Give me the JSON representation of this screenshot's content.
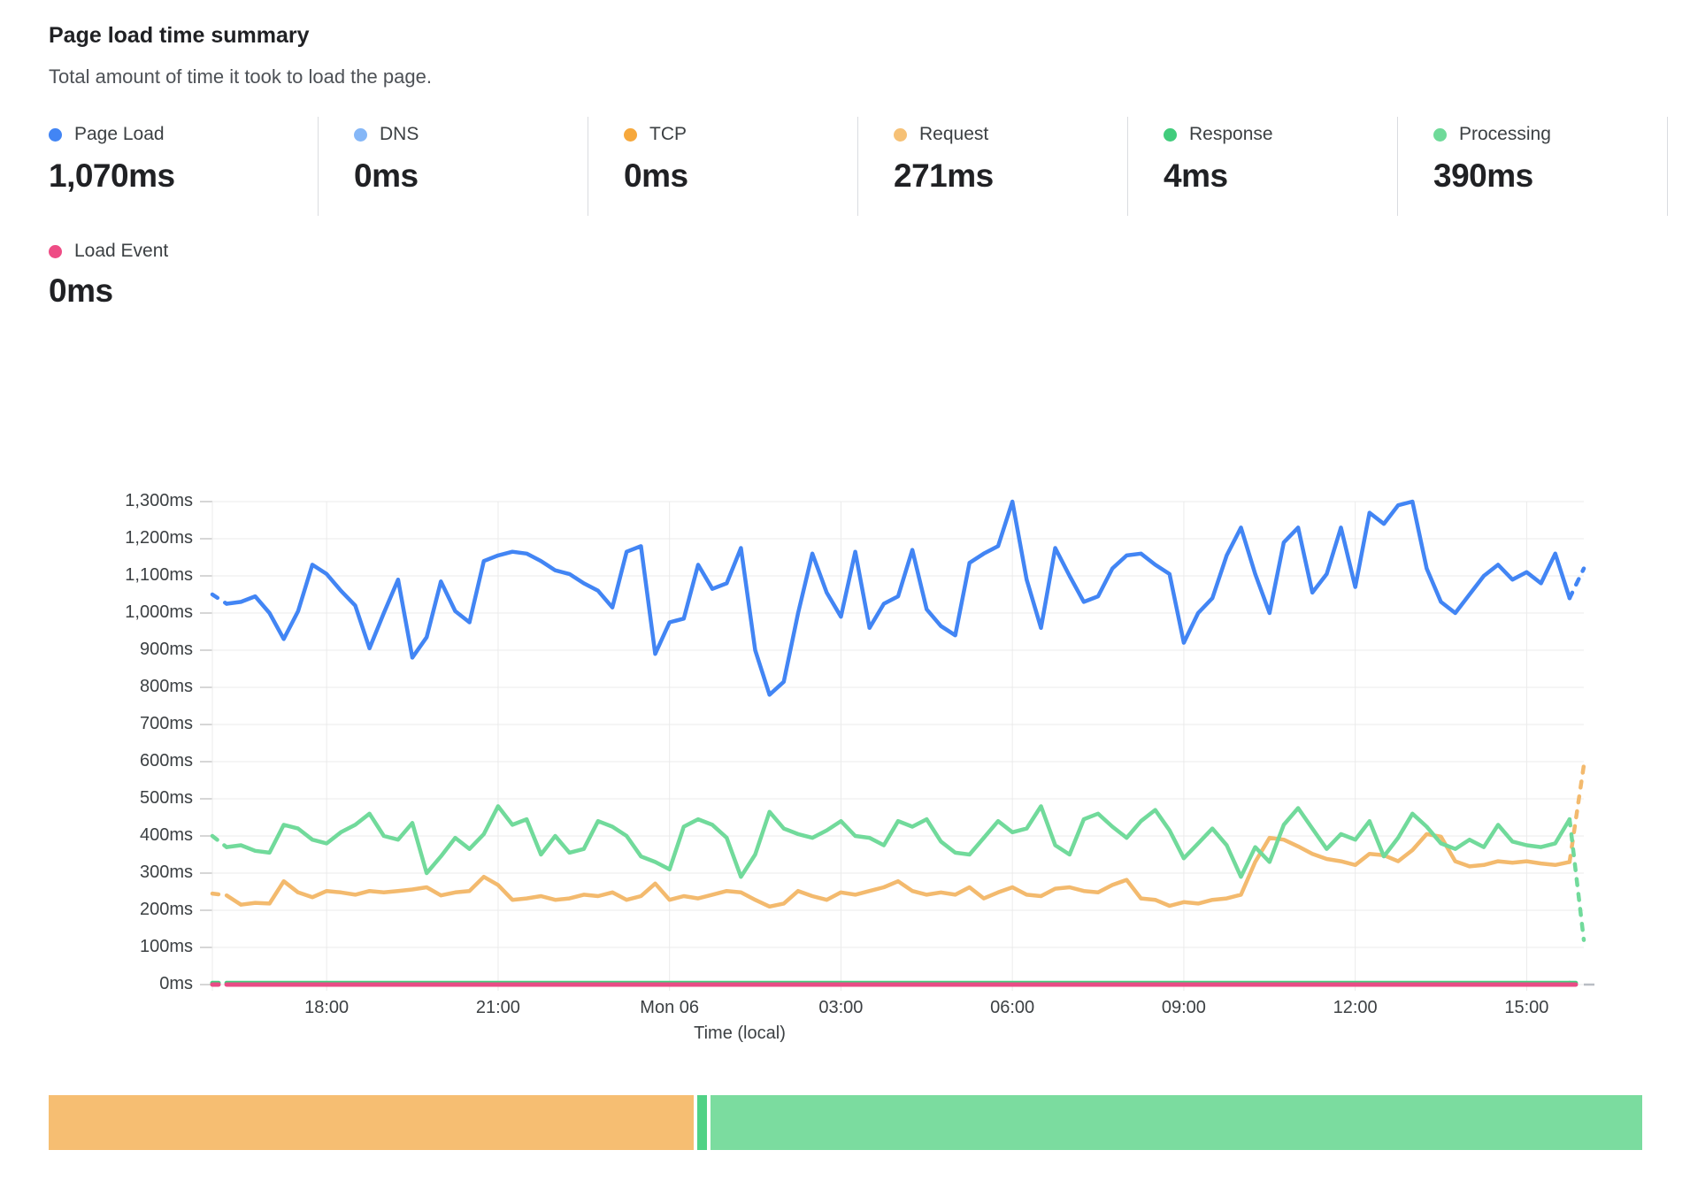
{
  "header": {
    "title": "Page load time summary",
    "subtitle": "Total amount of time it took to load the page."
  },
  "metrics": [
    {
      "label": "Page Load",
      "value": "1,070ms",
      "color": "#4285F4"
    },
    {
      "label": "DNS",
      "value": "0ms",
      "color": "#85B7F7"
    },
    {
      "label": "TCP",
      "value": "0ms",
      "color": "#F6A83C"
    },
    {
      "label": "Request",
      "value": "271ms",
      "color": "#F6C176"
    },
    {
      "label": "Response",
      "value": "4ms",
      "color": "#41CC7C"
    },
    {
      "label": "Processing",
      "value": "390ms",
      "color": "#6FDA99"
    }
  ],
  "load_event_metric": {
    "label": "Load Event",
    "value": "0ms",
    "color": "#EE4C85"
  },
  "chart_data": {
    "type": "line",
    "title": "Page load time summary",
    "xlabel": "Time (local)",
    "ylabel": "",
    "ylim": [
      0,
      1300
    ],
    "grid": true,
    "points": 97,
    "interval_minutes": 15,
    "y_ticks": [
      "0ms",
      "100ms",
      "200ms",
      "300ms",
      "400ms",
      "500ms",
      "600ms",
      "700ms",
      "800ms",
      "900ms",
      "1,000ms",
      "1,100ms",
      "1,200ms",
      "1,300ms"
    ],
    "x_ticks": [
      {
        "index": 8,
        "label": "18:00"
      },
      {
        "index": 20,
        "label": "21:00"
      },
      {
        "index": 32,
        "label": "Mon 06"
      },
      {
        "index": 44,
        "label": "03:00"
      },
      {
        "index": 56,
        "label": "06:00"
      },
      {
        "index": 68,
        "label": "09:00"
      },
      {
        "index": 80,
        "label": "12:00"
      },
      {
        "index": 92,
        "label": "15:00"
      }
    ],
    "series": [
      {
        "name": "DNS",
        "color": "#85B7F7",
        "width": 4,
        "constant": 0
      },
      {
        "name": "TCP",
        "color": "#F6A83C",
        "width": 4,
        "constant": 0
      },
      {
        "name": "Response",
        "color": "#44CD7E",
        "width": 5,
        "constant": 4
      },
      {
        "name": "Load Event",
        "color": "#E94C86",
        "width": 5,
        "constant": 0
      },
      {
        "name": "Request",
        "color": "#F3BA6E",
        "width": 4.5,
        "values": [
          245,
          240,
          215,
          220,
          218,
          278,
          248,
          235,
          252,
          248,
          242,
          252,
          248,
          252,
          256,
          262,
          240,
          248,
          252,
          290,
          268,
          228,
          232,
          238,
          228,
          232,
          242,
          238,
          248,
          228,
          238,
          272,
          228,
          238,
          232,
          242,
          252,
          248,
          228,
          210,
          218,
          252,
          238,
          228,
          248,
          242,
          252,
          262,
          278,
          252,
          242,
          248,
          242,
          262,
          232,
          248,
          262,
          242,
          238,
          258,
          262,
          252,
          248,
          268,
          282,
          232,
          228,
          212,
          222,
          218,
          228,
          232,
          242,
          330,
          395,
          390,
          372,
          352,
          338,
          332,
          322,
          352,
          348,
          332,
          362,
          405,
          398,
          332,
          318,
          322,
          332,
          328,
          332,
          326,
          322,
          330,
          590
        ]
      },
      {
        "name": "Processing",
        "color": "#71DA9B",
        "width": 4.5,
        "values": [
          400,
          370,
          375,
          360,
          355,
          430,
          420,
          390,
          380,
          410,
          430,
          460,
          400,
          390,
          435,
          300,
          345,
          395,
          365,
          405,
          480,
          430,
          445,
          350,
          400,
          355,
          365,
          440,
          425,
          400,
          345,
          330,
          310,
          425,
          445,
          430,
          395,
          290,
          350,
          465,
          420,
          405,
          395,
          415,
          440,
          400,
          395,
          375,
          440,
          425,
          445,
          385,
          355,
          350,
          395,
          440,
          410,
          420,
          480,
          375,
          350,
          445,
          460,
          425,
          395,
          440,
          470,
          415,
          340,
          380,
          420,
          375,
          290,
          370,
          330,
          430,
          475,
          420,
          365,
          405,
          390,
          440,
          345,
          395,
          460,
          425,
          380,
          365,
          390,
          370,
          430,
          385,
          375,
          370,
          380,
          445,
          120
        ]
      },
      {
        "name": "Page Load",
        "color": "#4285F4",
        "width": 4.5,
        "values": [
          1050,
          1025,
          1030,
          1045,
          1000,
          930,
          1005,
          1130,
          1105,
          1060,
          1020,
          905,
          1000,
          1090,
          880,
          935,
          1085,
          1005,
          975,
          1140,
          1155,
          1165,
          1160,
          1140,
          1115,
          1105,
          1080,
          1060,
          1015,
          1165,
          1180,
          890,
          975,
          985,
          1130,
          1065,
          1080,
          1175,
          900,
          780,
          815,
          1000,
          1160,
          1055,
          990,
          1165,
          960,
          1025,
          1045,
          1170,
          1010,
          965,
          940,
          1135,
          1160,
          1180,
          1300,
          1090,
          960,
          1175,
          1100,
          1030,
          1045,
          1120,
          1155,
          1160,
          1130,
          1105,
          920,
          1000,
          1040,
          1155,
          1230,
          1105,
          1000,
          1190,
          1230,
          1055,
          1105,
          1230,
          1070,
          1270,
          1240,
          1290,
          1300,
          1120,
          1030,
          1000,
          1050,
          1100,
          1130,
          1090,
          1110,
          1080,
          1160,
          1040,
          1120
        ]
      }
    ],
    "dashed_first_segment": true,
    "dashed_last_segment": true,
    "legend_position": "top"
  },
  "bottom_bar": {
    "segments": [
      {
        "color": "#F6BE72",
        "fraction": 0.405
      },
      {
        "color": "#50D286",
        "fraction": 0.006
      },
      {
        "color": "#7BDC9F",
        "fraction": 0.585
      }
    ]
  },
  "style": {
    "gridline_color": "#ebebeb",
    "tick_color": "#c9c9c9"
  }
}
